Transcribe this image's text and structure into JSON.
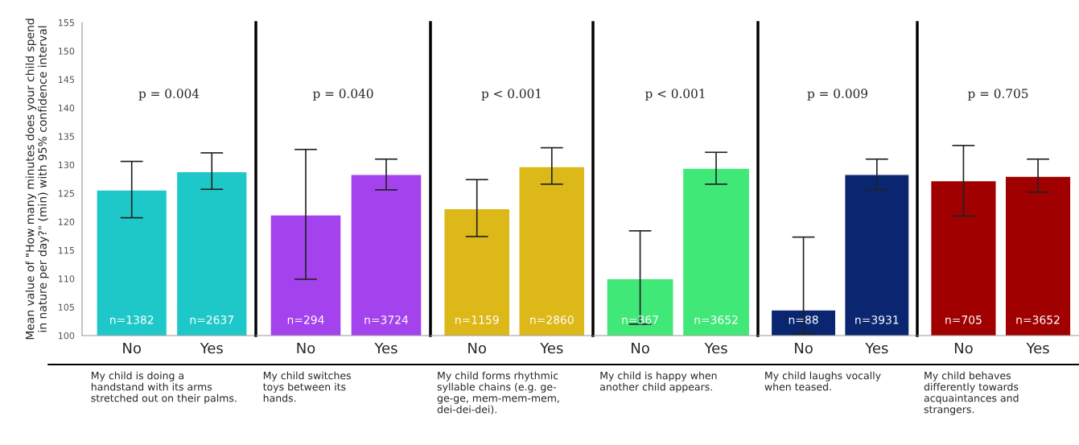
{
  "chart_data": [
    {
      "type": "bar",
      "categories": [
        "No",
        "Yes"
      ],
      "values": [
        125.6,
        128.8
      ],
      "color": "#1fc8c8",
      "errors": [
        [
          120.7,
          130.6
        ],
        [
          125.7,
          132.1
        ]
      ],
      "annotations": [
        "p = 0.004",
        "n=1382",
        "n=2637"
      ],
      "xlabel": "My child is doing a\nhandstand with its arms\nstretched out on their palms.",
      "ylabel": "Mean value of \"How many minutes does your child spend\nin nature per day?\" (min) with 95% confidence interval",
      "ylim": [
        100,
        155
      ],
      "yticks": [
        100,
        105,
        110,
        115,
        120,
        125,
        130,
        135,
        140,
        145,
        150,
        155
      ]
    },
    {
      "type": "bar",
      "categories": [
        "No",
        "Yes"
      ],
      "values": [
        121.2,
        128.3
      ],
      "color": "#a442ee",
      "errors": [
        [
          109.9,
          132.7
        ],
        [
          125.6,
          131.0
        ]
      ],
      "annotations": [
        "p = 0.040",
        "n=294",
        "n=3724"
      ],
      "xlabel": "My child switches\ntoys between its\nhands.",
      "ylim": [
        100,
        155
      ],
      "tick_labels": "x"
    },
    {
      "type": "bar",
      "categories": [
        "No",
        "Yes"
      ],
      "values": [
        122.3,
        129.7
      ],
      "color": "#dcb818",
      "errors": [
        [
          117.4,
          127.4
        ],
        [
          126.6,
          133.0
        ]
      ],
      "annotations": [
        "p < 0.001",
        "n=1159",
        "n=2860"
      ],
      "xlabel": "My child forms rhythmic\nsyllable chains (e.g. ge-\nge-ge, mem-mem-mem,\ndei-dei-dei).",
      "ylim": [
        100,
        155
      ],
      "tick_labels": "x"
    },
    {
      "type": "bar",
      "categories": [
        "No",
        "Yes"
      ],
      "values": [
        110.0,
        129.4
      ],
      "color": "#40e878",
      "errors": [
        [
          102.0,
          118.4
        ],
        [
          126.6,
          132.2
        ]
      ],
      "annotations": [
        "p < 0.001",
        "n=367",
        "n=3652"
      ],
      "xlabel": "My child is happy when\nanother child appears.",
      "ylim": [
        100,
        155
      ],
      "tick_labels": "x"
    },
    {
      "type": "bar",
      "categories": [
        "No",
        "Yes"
      ],
      "values": [
        104.5,
        128.3
      ],
      "color": "#0a2670",
      "errors": [
        [
          100.3,
          117.3
        ],
        [
          125.6,
          131.0
        ]
      ],
      "annotations": [
        "p = 0.009",
        "n=88",
        "n=3931"
      ],
      "xlabel": "My child laughs vocally\nwhen teased.",
      "ylim": [
        100,
        155
      ],
      "tick_labels": "x"
    },
    {
      "type": "bar",
      "categories": [
        "No",
        "Yes"
      ],
      "values": [
        127.2,
        128.0
      ],
      "color": "#a00000",
      "errors": [
        [
          121.0,
          133.4
        ],
        [
          125.2,
          131.0
        ]
      ],
      "annotations": [
        "p = 0.705",
        "n=705",
        "n=3652"
      ],
      "xlabel": "My child behaves\ndifferently towards\nacquaintances and\nstrangers.",
      "ylim": [
        100,
        155
      ],
      "tick_labels": "x"
    }
  ]
}
